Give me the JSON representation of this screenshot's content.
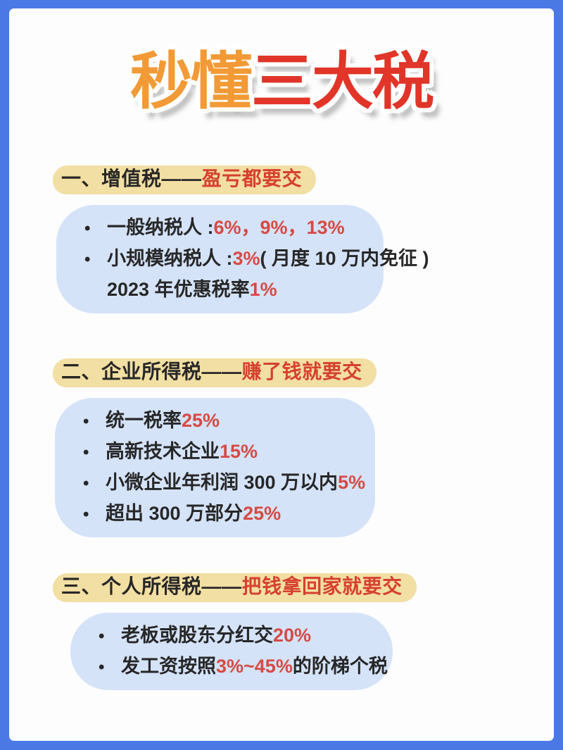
{
  "colors": {
    "frame_blue": "#4a79e6",
    "card_white": "#fdfdfe",
    "box_blue": "#d5e3f8",
    "highlight_yellow": "#f2dfa3",
    "heading_red": "#d6402f",
    "body_red": "#d64a45",
    "text_black": "#272727",
    "title_orange": "#f29a35",
    "title_red": "#e13529"
  },
  "title": {
    "part1": "秒懂",
    "part2": "三大税"
  },
  "sections": [
    {
      "id": "vat",
      "heading": {
        "black": "一、增值税——",
        "red": "盈亏都要交"
      },
      "lines": [
        {
          "bullet": true,
          "parts": [
            {
              "t": "一般纳税人 :",
              "c": "black"
            },
            {
              "t": "6%，9%，13%",
              "c": "red"
            }
          ]
        },
        {
          "bullet": true,
          "parts": [
            {
              "t": "小规模纳税人 :",
              "c": "black"
            },
            {
              "t": "3%",
              "c": "red"
            },
            {
              "t": " ( 月度 10 万内免征 )",
              "c": "black"
            }
          ]
        },
        {
          "bullet": false,
          "parts": [
            {
              "t": "2023 年优惠税率 ",
              "c": "black"
            },
            {
              "t": "1%",
              "c": "red"
            }
          ]
        }
      ]
    },
    {
      "id": "corporate-income-tax",
      "heading": {
        "black": "二、企业所得税——",
        "red": "赚了钱就要交"
      },
      "lines": [
        {
          "bullet": true,
          "parts": [
            {
              "t": "统一税率 ",
              "c": "black"
            },
            {
              "t": "25%",
              "c": "red"
            }
          ]
        },
        {
          "bullet": true,
          "parts": [
            {
              "t": "高新技术企业 ",
              "c": "black"
            },
            {
              "t": "15%",
              "c": "red"
            }
          ]
        },
        {
          "bullet": true,
          "parts": [
            {
              "t": "小微企业年利润 300 万以内 ",
              "c": "black"
            },
            {
              "t": "5%",
              "c": "red"
            }
          ]
        },
        {
          "bullet": true,
          "parts": [
            {
              "t": "超出 300 万部分 ",
              "c": "black"
            },
            {
              "t": "25%",
              "c": "red"
            }
          ]
        }
      ]
    },
    {
      "id": "personal-income-tax",
      "heading": {
        "black": "三、个人所得税——",
        "red": "把钱拿回家就要交"
      },
      "lines": [
        {
          "bullet": true,
          "parts": [
            {
              "t": "老板或股东分红交 ",
              "c": "black"
            },
            {
              "t": "20%",
              "c": "red"
            }
          ]
        },
        {
          "bullet": true,
          "parts": [
            {
              "t": "发工资按照 ",
              "c": "black"
            },
            {
              "t": "3%~45%",
              "c": "red"
            },
            {
              "t": " 的阶梯个税",
              "c": "black"
            }
          ]
        }
      ]
    }
  ]
}
